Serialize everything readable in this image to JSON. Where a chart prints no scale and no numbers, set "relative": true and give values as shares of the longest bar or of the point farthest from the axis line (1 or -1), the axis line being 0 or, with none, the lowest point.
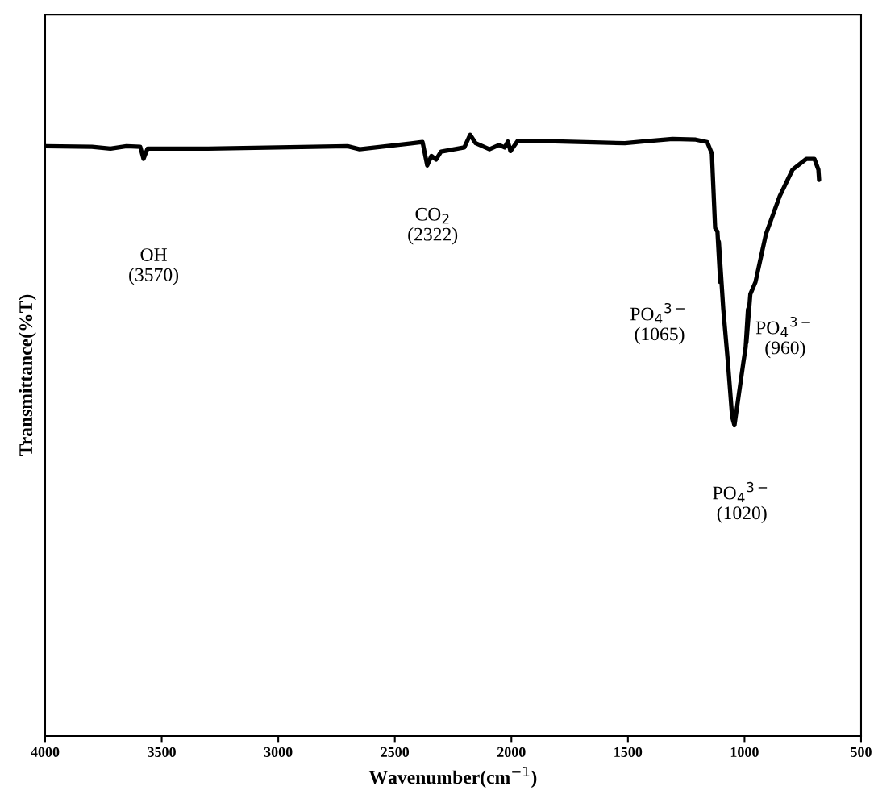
{
  "chart_data": {
    "type": "line",
    "xlabel": "Wavenumber(cm$^{−1}$)",
    "ylabel": "Transmittance(%T)",
    "relative": true,
    "tick_labels": "x",
    "grid": false,
    "legend": false,
    "marker": "none",
    "line_style": "solid",
    "xlim": [
      4000,
      500
    ],
    "xticks": [
      4000,
      3500,
      3000,
      2500,
      2000,
      1500,
      1000,
      500
    ],
    "annotations": [
      "OH\n(3570)",
      "CO$_{2}$\n(2322)",
      "PO$_{4}$$^{3−}$\n(1065)",
      "PO$_{4}$$^{3−}$\n(960)",
      "PO$_{4}$$^{3−}$\n(1020)"
    ],
    "series": [
      {
        "color": "#000000",
        "x": [
          4000,
          3799,
          3720,
          3651,
          3592,
          3578,
          3561,
          3301,
          3000,
          2703,
          2651,
          2402,
          2381,
          2361,
          2343,
          2323,
          2302,
          2202,
          2177,
          2153,
          2094,
          2053,
          2029,
          2015,
          2004,
          1973,
          1814,
          1614,
          1513,
          1430,
          1309,
          1209,
          1160,
          1140,
          1126,
          1116,
          1104,
          1110,
          1091,
          1071,
          1053,
          1043,
          1005,
          995,
          985,
          992,
          975,
          953,
          908,
          849,
          794,
          735,
          700,
          683,
          680
        ],
        "values": [
          0.981,
          0.98,
          0.977,
          0.981,
          0.98,
          0.96,
          0.977,
          0.977,
          0.979,
          0.981,
          0.976,
          0.987,
          0.988,
          0.949,
          0.965,
          0.959,
          0.972,
          0.979,
          1.0,
          0.986,
          0.976,
          0.983,
          0.979,
          0.989,
          0.973,
          0.99,
          0.989,
          0.987,
          0.986,
          0.989,
          0.993,
          0.992,
          0.988,
          0.969,
          0.845,
          0.839,
          0.755,
          0.822,
          0.71,
          0.621,
          0.531,
          0.517,
          0.621,
          0.647,
          0.71,
          0.654,
          0.735,
          0.755,
          0.835,
          0.898,
          0.942,
          0.96,
          0.96,
          0.942,
          0.925
        ]
      }
    ]
  }
}
